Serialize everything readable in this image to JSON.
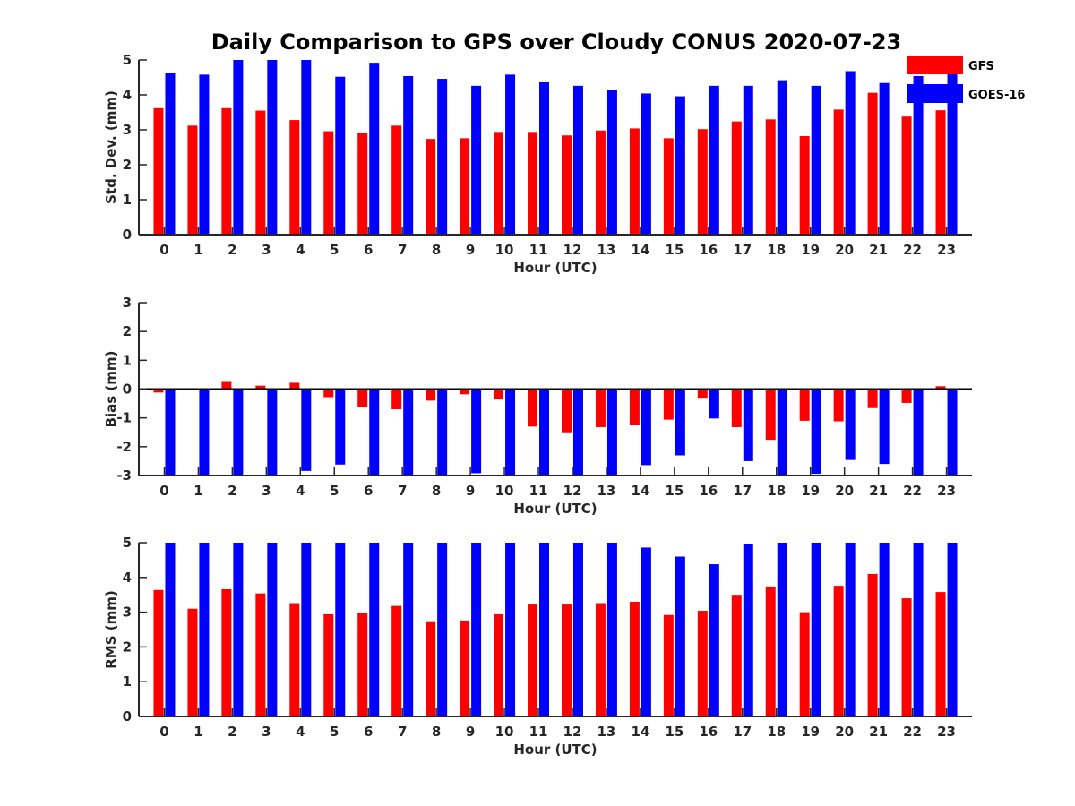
{
  "chart_data": {
    "title": "Daily Comparison to GPS over Cloudy CONUS 2020-07-23",
    "type": "bar",
    "categories": [
      "0",
      "1",
      "2",
      "3",
      "4",
      "5",
      "6",
      "7",
      "8",
      "9",
      "10",
      "11",
      "12",
      "13",
      "14",
      "15",
      "16",
      "17",
      "18",
      "19",
      "20",
      "21",
      "22",
      "23"
    ],
    "legend": {
      "placement": "top-right",
      "entries": [
        {
          "name": "GFS",
          "color": "#ff0000"
        },
        {
          "name": "GOES-16",
          "color": "#0000ff"
        }
      ]
    },
    "panels": [
      {
        "ylabel": "Std. Dev. (mm)",
        "xlabel": "Hour (UTC)",
        "ylim": [
          0,
          5
        ],
        "yticks": [
          "0",
          "1",
          "2",
          "3",
          "4",
          "5"
        ],
        "grid": false,
        "series": [
          {
            "name": "GFS",
            "color": "#ff0000",
            "values": [
              3.62,
              3.12,
              3.62,
              3.55,
              3.28,
              2.96,
              2.92,
              3.12,
              2.74,
              2.76,
              2.94,
              2.94,
              2.84,
              2.98,
              3.04,
              2.76,
              3.02,
              3.24,
              3.3,
              2.82,
              3.58,
              4.06,
              3.38,
              3.56
            ]
          },
          {
            "name": "GOES-16",
            "color": "#0000ff",
            "values": [
              4.62,
              4.58,
              5.0,
              5.0,
              5.0,
              4.52,
              4.92,
              4.54,
              4.46,
              4.26,
              4.58,
              4.36,
              4.26,
              4.14,
              4.04,
              3.96,
              4.26,
              4.26,
              4.42,
              4.26,
              4.68,
              4.34,
              4.54,
              4.6
            ]
          }
        ]
      },
      {
        "ylabel": "Bias (mm)",
        "xlabel": "Hour (UTC)",
        "ylim": [
          -3,
          3
        ],
        "yticks": [
          "-3",
          "-2",
          "-1",
          "0",
          "1",
          "2",
          "3"
        ],
        "grid": false,
        "series": [
          {
            "name": "GFS",
            "color": "#ff0000",
            "values": [
              -0.12,
              0.02,
              0.28,
              0.12,
              0.22,
              -0.28,
              -0.62,
              -0.7,
              -0.4,
              -0.18,
              -0.36,
              -1.3,
              -1.5,
              -1.32,
              -1.26,
              -1.06,
              -0.3,
              -1.32,
              -1.76,
              -1.1,
              -1.12,
              -0.66,
              -0.48,
              0.1
            ]
          },
          {
            "name": "GOES-16",
            "color": "#0000ff",
            "values": [
              -3.0,
              -3.0,
              -3.0,
              -3.0,
              -2.84,
              -2.62,
              -3.0,
              -3.0,
              -3.0,
              -2.92,
              -3.0,
              -3.0,
              -3.0,
              -3.0,
              -2.64,
              -2.3,
              -1.02,
              -2.5,
              -3.0,
              -2.94,
              -2.46,
              -2.6,
              -3.0,
              -3.0
            ]
          }
        ]
      },
      {
        "ylabel": "RMS (mm)",
        "xlabel": "Hour (UTC)",
        "ylim": [
          0,
          5
        ],
        "yticks": [
          "0",
          "1",
          "2",
          "3",
          "4",
          "5"
        ],
        "grid": false,
        "series": [
          {
            "name": "GFS",
            "color": "#ff0000",
            "values": [
              3.64,
              3.1,
              3.66,
              3.54,
              3.26,
              2.94,
              2.98,
              3.18,
              2.74,
              2.76,
              2.94,
              3.22,
              3.22,
              3.26,
              3.3,
              2.92,
              3.04,
              3.5,
              3.74,
              3.0,
              3.76,
              4.1,
              3.4,
              3.58
            ]
          },
          {
            "name": "GOES-16",
            "color": "#0000ff",
            "values": [
              5.0,
              5.0,
              5.0,
              5.0,
              5.0,
              5.0,
              5.0,
              5.0,
              5.0,
              5.0,
              5.0,
              5.0,
              5.0,
              5.0,
              4.86,
              4.6,
              4.38,
              4.96,
              5.0,
              5.0,
              5.0,
              5.0,
              5.0,
              5.0
            ]
          }
        ]
      }
    ]
  }
}
